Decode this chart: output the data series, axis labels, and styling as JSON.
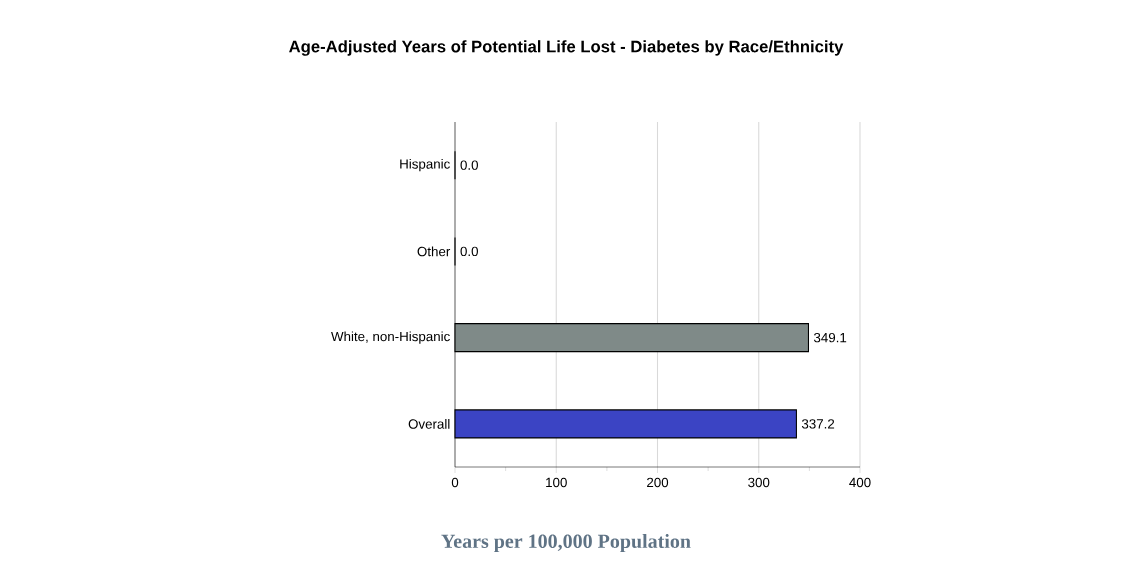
{
  "chart_data": {
    "type": "bar",
    "orientation": "horizontal",
    "title": "Age-Adjusted Years of Potential Life Lost - Diabetes by Race/Ethnicity",
    "xlabel": "Years per 100,000 Population",
    "categories": [
      "Hispanic",
      "Other",
      "White, non-Hispanic",
      "Overall"
    ],
    "values": [
      0.0,
      0.0,
      349.1,
      337.2
    ],
    "colors": [
      "#7f8a88",
      "#7f8a88",
      "#7f8a88",
      "#3b44c4"
    ],
    "xlim": [
      0,
      400
    ],
    "xticks": [
      0,
      100,
      200,
      300,
      400
    ],
    "value_labels": [
      "0.0",
      "0.0",
      "349.1",
      "337.2"
    ],
    "grid": "x"
  }
}
